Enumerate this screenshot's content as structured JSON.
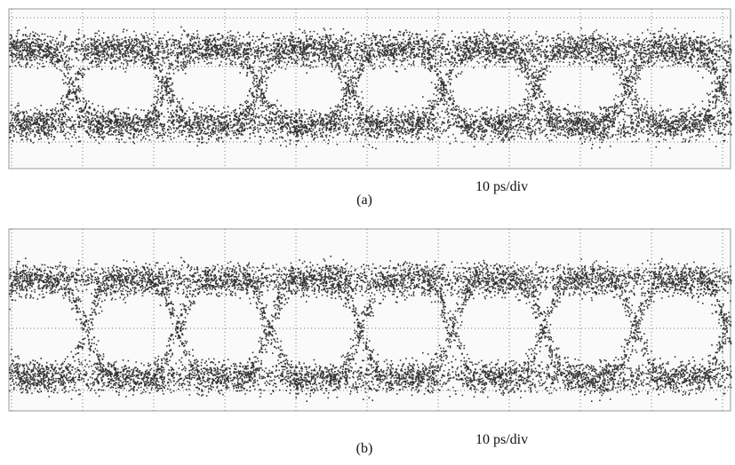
{
  "panels": [
    {
      "caption": "(a)",
      "scale": "10 ps/div"
    },
    {
      "caption": "(b)",
      "scale": "10 ps/div"
    }
  ]
}
